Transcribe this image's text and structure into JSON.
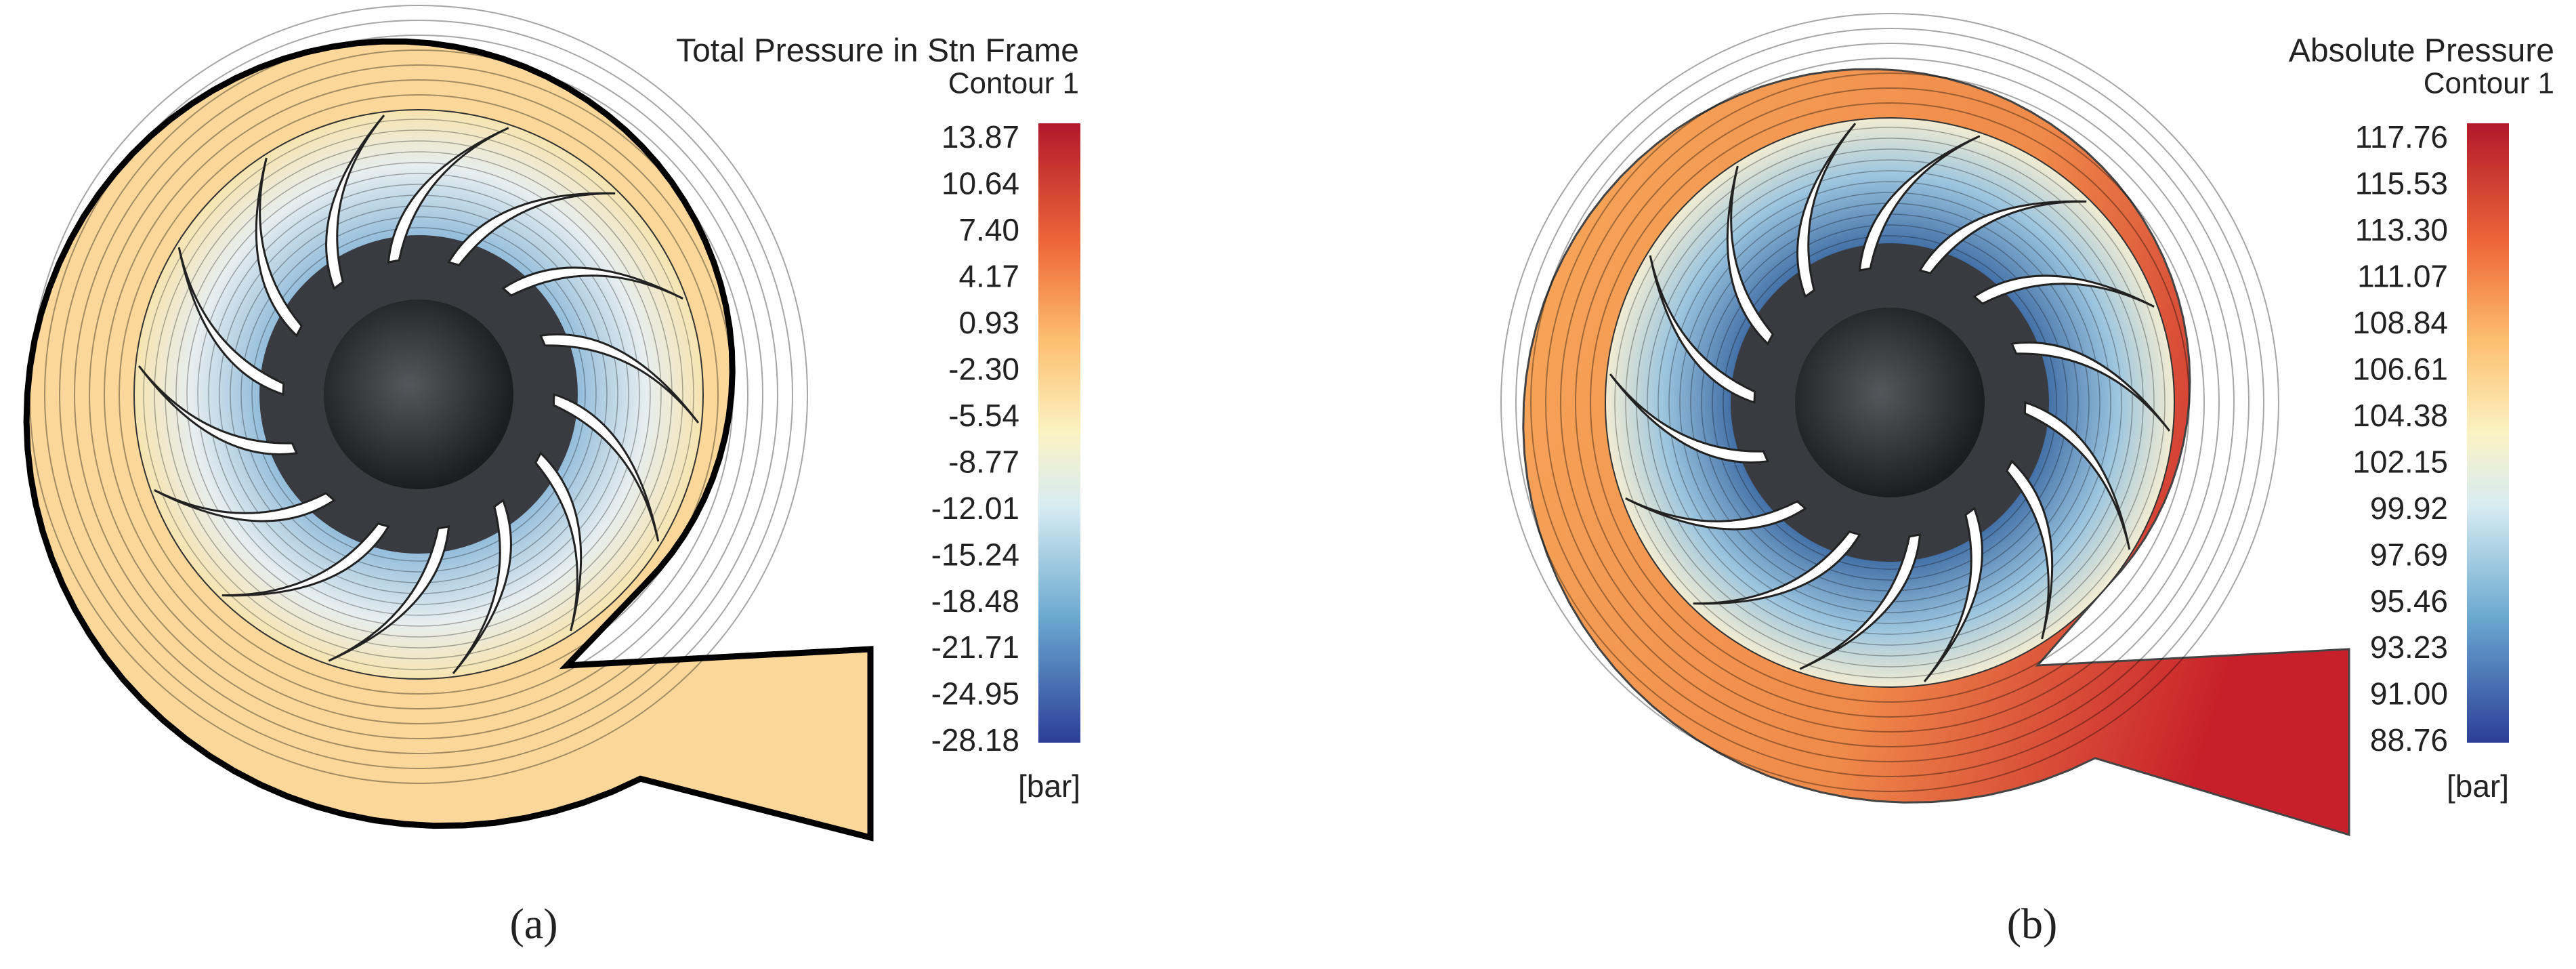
{
  "panels": [
    {
      "title": "Total Pressure in Stn Frame",
      "subtitle": "Contour 1",
      "ticks": [
        "13.87",
        "10.64",
        "7.40",
        "4.17",
        "0.93",
        "-2.30",
        "-5.54",
        "-8.77",
        "-12.01",
        "-15.24",
        "-18.48",
        "-21.71",
        "-24.95",
        "-28.18"
      ],
      "unit": "[bar]",
      "label": "(a)"
    },
    {
      "title": "Absolute Pressure",
      "subtitle": "Contour 1",
      "ticks": [
        "117.76",
        "115.53",
        "113.30",
        "111.07",
        "108.84",
        "106.61",
        "104.38",
        "102.15",
        "99.92",
        "97.69",
        "95.46",
        "93.23",
        "91.00",
        "88.76"
      ],
      "unit": "[bar]",
      "label": "(b)"
    }
  ]
}
